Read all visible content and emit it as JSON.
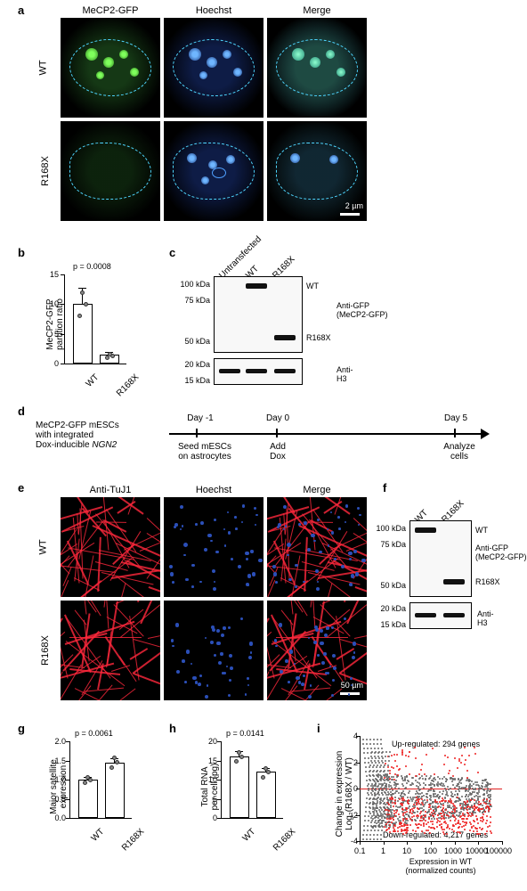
{
  "panel_a": {
    "columns": [
      "MeCP2-GFP",
      "Hoechst",
      "Merge"
    ],
    "rows": [
      "WT",
      "R168X"
    ],
    "scalebar_text": "2 µm",
    "dash_color": "#4fd6ff",
    "gfp_color": "#7fff5c",
    "hoechst_color": "#6fb6ff"
  },
  "panel_b": {
    "title": "MeCP2-GFP\npartition ratio",
    "p_value": "p = 0.0008",
    "categories": [
      "WT",
      "R168X"
    ],
    "values": [
      10,
      1.5
    ],
    "errors": [
      2.8,
      0.5
    ],
    "ylim": [
      0,
      15
    ],
    "yticks": [
      0,
      5,
      10,
      15
    ],
    "dots_wt": [
      8,
      10,
      12
    ],
    "dots_r168x": [
      1.2,
      1.5,
      1.9
    ]
  },
  "panel_c": {
    "lanes": [
      "Untransfected",
      "WT",
      "R168X"
    ],
    "mw_labels_upper": [
      "100 kDa",
      "75 kDa",
      "50 kDa"
    ],
    "mw_labels_lower": [
      "20 kDa",
      "15 kDa"
    ],
    "band_labels": {
      "wt": "WT",
      "r168x": "R168X"
    },
    "antibody_upper": "Anti-GFP\n(MeCP2-GFP)",
    "antibody_lower": "Anti-H3"
  },
  "panel_d": {
    "cell_desc": "MeCP2-GFP mESCs\nwith integrated\nDox-inducible NGN2",
    "ngn2_italic": "NGN2",
    "days": [
      "Day -1",
      "Day 0",
      "Day 5"
    ],
    "events": [
      "Seed mESCs\non astrocytes",
      "Add\nDox",
      "Analyze\ncells"
    ]
  },
  "panel_e": {
    "columns": [
      "Anti-TuJ1",
      "Hoechst",
      "Merge"
    ],
    "rows": [
      "WT",
      "R168X"
    ],
    "scalebar_text": "50 µm",
    "tuj1_color": "#ff2a3c",
    "hoechst_color": "#2b4fb8"
  },
  "panel_f": {
    "lanes": [
      "WT",
      "R168X"
    ],
    "mw_labels_upper": [
      "100 kDa",
      "75 kDa",
      "50 kDa"
    ],
    "mw_labels_lower": [
      "20 kDa",
      "15 kDa"
    ],
    "band_labels": {
      "wt": "WT",
      "r168x": "R168X"
    },
    "antibody_upper": "Anti-GFP\n(MeCP2-GFP)",
    "antibody_lower": "Anti-H3"
  },
  "panel_g": {
    "ylabel": "Major satellite\nexpression",
    "p_value": "p = 0.0061",
    "categories": [
      "WT",
      "R168X"
    ],
    "values": [
      1.0,
      1.45
    ],
    "errors": [
      0.08,
      0.12
    ],
    "ylim": [
      0,
      2.0
    ],
    "yticks": [
      0.0,
      0.5,
      1.0,
      1.5,
      2.0
    ],
    "dots_wt": [
      0.92,
      1.0,
      1.08
    ],
    "dots_r168x": [
      1.32,
      1.46,
      1.58
    ]
  },
  "panel_h": {
    "ylabel": "Total RNA\nper cell (pg)",
    "p_value": "p = 0.0141",
    "categories": [
      "WT",
      "R168X"
    ],
    "values": [
      16,
      12
    ],
    "errors": [
      1.4,
      1.0
    ],
    "ylim": [
      0,
      20
    ],
    "yticks": [
      0,
      5,
      10,
      15,
      20
    ],
    "dots_wt": [
      15,
      16,
      17.2
    ],
    "dots_r168x": [
      11,
      12,
      13
    ]
  },
  "panel_i": {
    "xlabel": "Expression in WT\n(normalized counts)",
    "ylabel": "Change in expression\nLog₂(R168X / WT)",
    "up_label": "Up-regulated: 294 genes",
    "down_label": "Down-regulated: 4,217 genes",
    "xlim_log": [
      0.1,
      100000
    ],
    "ylim": [
      -4,
      4
    ],
    "xticks": [
      "0.1",
      "1",
      "10",
      "100",
      "1000",
      "10000",
      "100000"
    ],
    "yticks": [
      -4,
      -2,
      0,
      2,
      4
    ],
    "red_line_y": 0,
    "point_color_gray": "#666666",
    "point_color_red": "#e02020"
  },
  "colors": {
    "bg": "#ffffff",
    "axis": "#000000",
    "bar_fill": "#ffffff",
    "bar_stroke": "#000000"
  }
}
